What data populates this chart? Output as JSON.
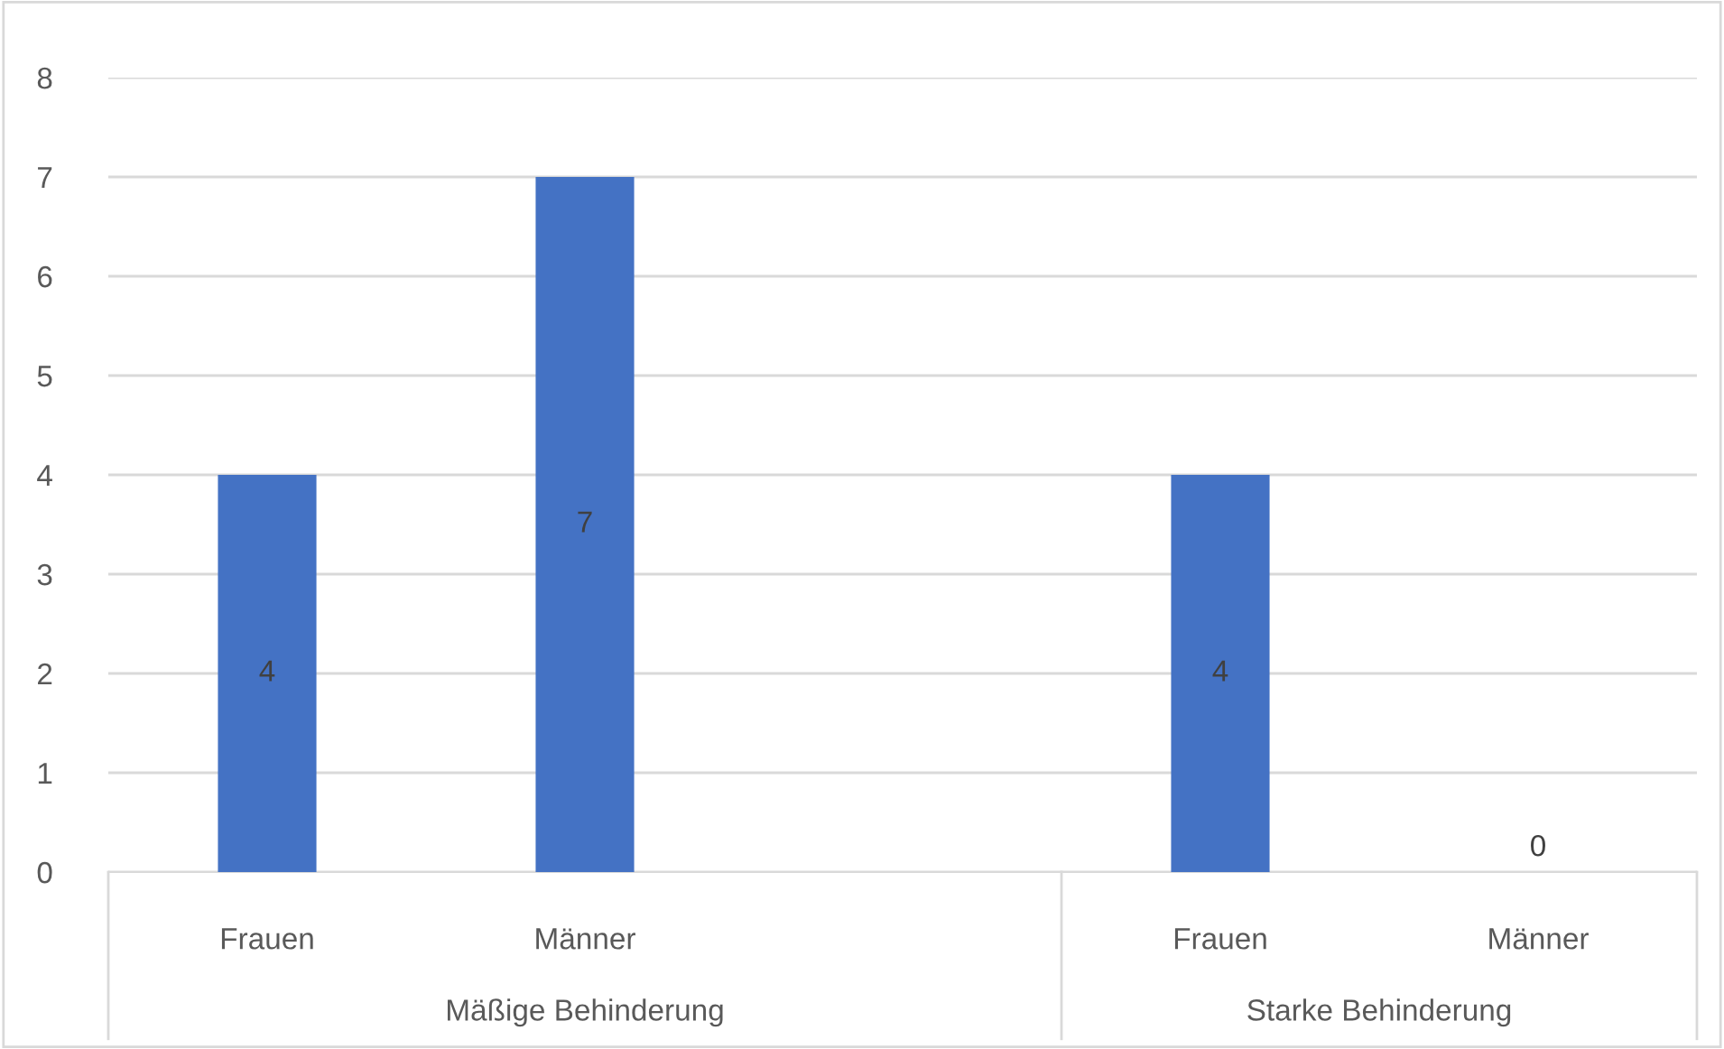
{
  "chart_data": {
    "type": "bar",
    "categories": [
      "Frauen",
      "Männer",
      null,
      "Frauen",
      "Männer"
    ],
    "values": [
      4,
      7,
      null,
      4,
      0
    ],
    "color": "#4472c4",
    "ylim": [
      0,
      8
    ],
    "yticks": [
      0,
      1,
      2,
      3,
      4,
      5,
      6,
      7,
      8
    ],
    "grid": "y",
    "data_labels": true,
    "legend": false,
    "annotations": [
      "Mäßige Behinderung",
      "Starke Behinderung"
    ]
  }
}
